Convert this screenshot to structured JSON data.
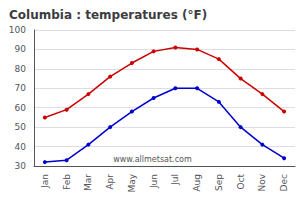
{
  "chart_data": {
    "type": "line",
    "title": "Columbia : temperatures (°F)",
    "categories": [
      "Jan",
      "Feb",
      "Mar",
      "Apr",
      "May",
      "Jun",
      "Jul",
      "Aug",
      "Sep",
      "Oct",
      "Nov",
      "Dec"
    ],
    "series": [
      {
        "color": "#cc0000",
        "values": [
          55,
          59,
          67,
          76,
          83,
          89,
          91,
          90,
          85,
          75,
          67,
          58
        ]
      },
      {
        "color": "#0000cc",
        "values": [
          32,
          33,
          41,
          50,
          58,
          65,
          70,
          70,
          63,
          50,
          41,
          34
        ]
      }
    ],
    "ylim": [
      30,
      100
    ],
    "yticks": [
      30,
      40,
      50,
      60,
      70,
      80,
      90,
      100
    ],
    "grid": true,
    "marker": "circle",
    "annotation": "www.allmetsat.com"
  }
}
